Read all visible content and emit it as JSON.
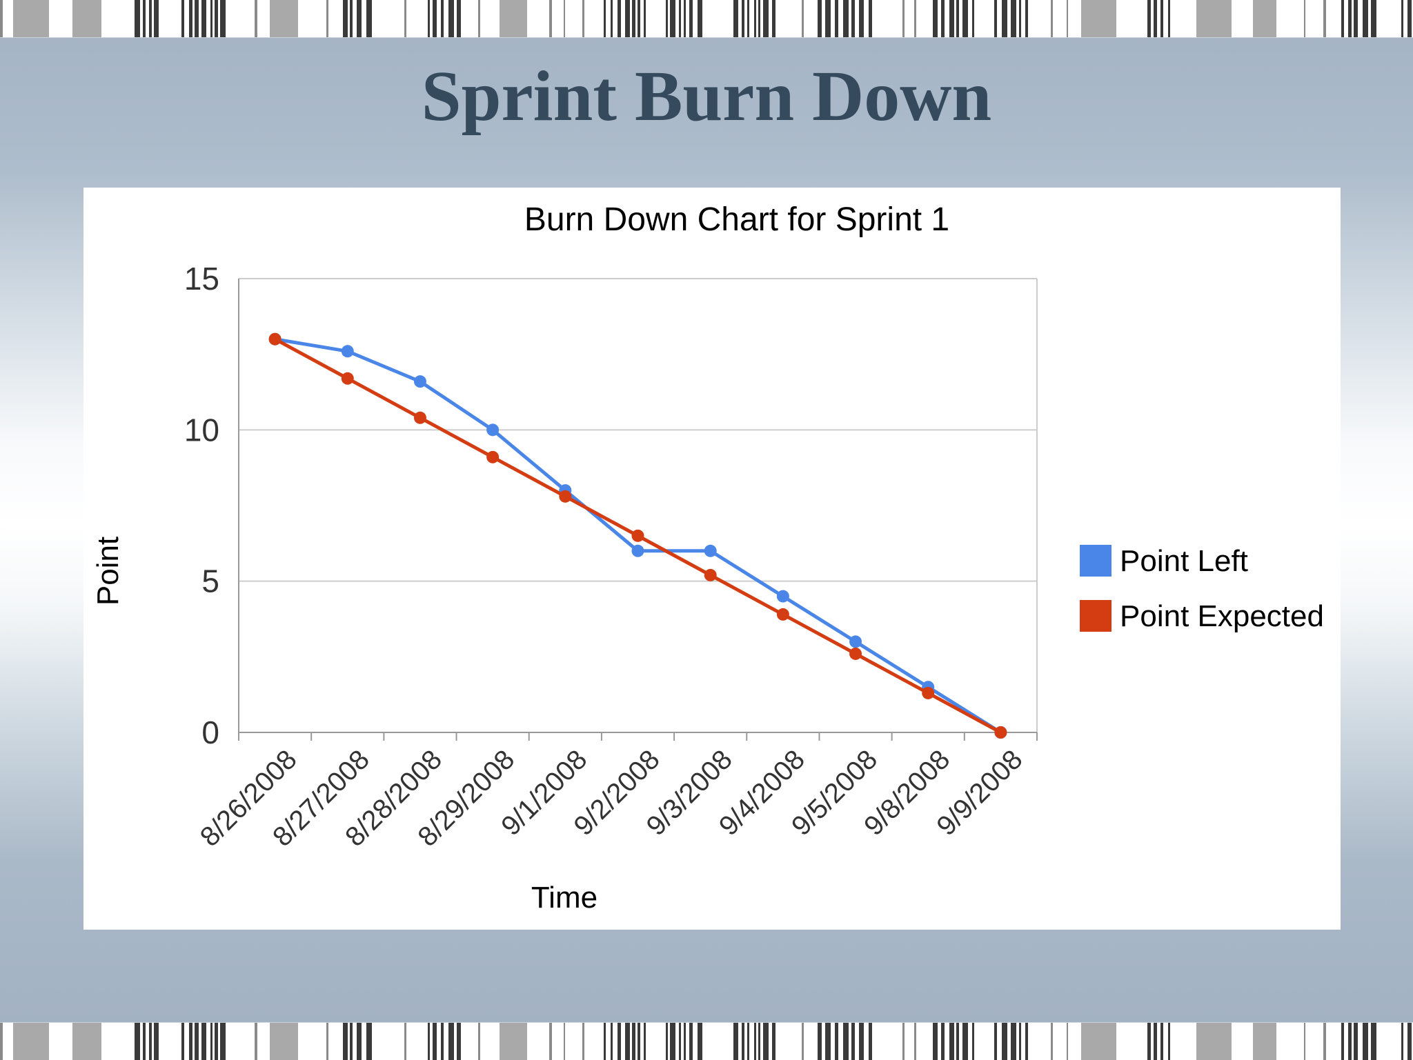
{
  "slide": {
    "title": "Sprint Burn Down"
  },
  "chart_data": {
    "type": "line",
    "title": "Burn Down Chart for Sprint 1",
    "xlabel": "Time",
    "ylabel": "Point",
    "categories": [
      "8/26/2008",
      "8/27/2008",
      "8/28/2008",
      "8/29/2008",
      "9/1/2008",
      "9/2/2008",
      "9/3/2008",
      "9/4/2008",
      "9/5/2008",
      "9/8/2008",
      "9/9/2008"
    ],
    "ylim": [
      0,
      15
    ],
    "yticks": [
      "0",
      "5",
      "10",
      "15"
    ],
    "grid": true,
    "legend_position": "right",
    "series": [
      {
        "name": "Point Left",
        "color": "#4a86e8",
        "values": [
          13,
          12.6,
          11.6,
          10,
          8,
          6,
          6,
          4.5,
          3,
          1.5,
          0
        ]
      },
      {
        "name": "Point Expected",
        "color": "#d43c12",
        "values": [
          13,
          11.7,
          10.4,
          9.1,
          7.8,
          6.5,
          5.2,
          3.9,
          2.6,
          1.3,
          0
        ]
      }
    ]
  }
}
